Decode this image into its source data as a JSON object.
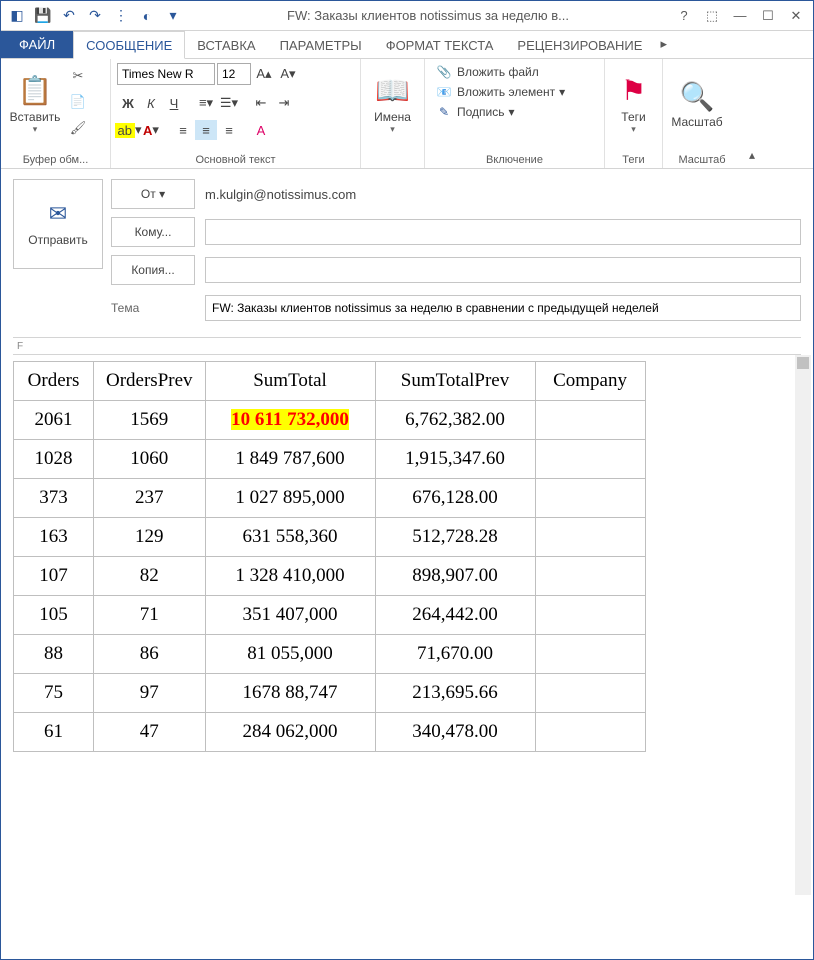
{
  "window": {
    "title": "FW: Заказы клиентов notissimus за неделю в...",
    "qat": {
      "save": "💾",
      "undo": "↶",
      "redo": "↷",
      "down": "▾",
      "sep": "↑↓"
    }
  },
  "tabs": {
    "file": "ФАЙЛ",
    "message": "СООБЩЕНИЕ",
    "insert": "ВСТАВКА",
    "options": "ПАРАМЕТРЫ",
    "format": "ФОРМАТ ТЕКСТА",
    "review": "РЕЦЕНЗИРОВАНИЕ"
  },
  "ribbon": {
    "clipboard": {
      "label": "Буфер обм...",
      "paste": "Вставить"
    },
    "font": {
      "label": "Основной текст",
      "name": "Times New R",
      "size": "12",
      "bold": "Ж",
      "italic": "К",
      "underline": "Ч",
      "hl": "ab",
      "fc": "A"
    },
    "names": {
      "label": "Имена",
      "btn": "Имена"
    },
    "include": {
      "label": "Включение",
      "attach_file": "Вложить файл",
      "attach_item": "Вложить элемент",
      "signature": "Подпись"
    },
    "tags": {
      "label": "Теги",
      "btn": "Теги"
    },
    "zoom": {
      "label": "Масштаб",
      "btn": "Масштаб"
    }
  },
  "compose": {
    "send": "Отправить",
    "from_btn": "От ▾",
    "from_val": "m.kulgin@notissimus.com",
    "to_btn": "Кому...",
    "cc_btn": "Копия...",
    "subject_lbl": "Тема",
    "subject_val": "FW: Заказы клиентов notissimus за неделю в сравнении с предыдущей неделей"
  },
  "table": {
    "headers": [
      "Orders",
      "OrdersPrev",
      "SumTotal",
      "SumTotalPrev",
      "Company"
    ],
    "rows": [
      {
        "c": [
          "2061",
          "1569",
          "10 611 732,000",
          "6,762,382.00",
          ""
        ],
        "hl": 2
      },
      {
        "c": [
          "1028",
          "1060",
          "1 849 787,600",
          "1,915,347.60",
          ""
        ]
      },
      {
        "c": [
          "373",
          "237",
          "1 027 895,000",
          "676,128.00",
          ""
        ]
      },
      {
        "c": [
          "163",
          "129",
          "631 558,360",
          "512,728.28",
          ""
        ]
      },
      {
        "c": [
          "107",
          "82",
          "1 328 410,000",
          "898,907.00",
          ""
        ]
      },
      {
        "c": [
          "105",
          "71",
          "351 407,000",
          "264,442.00",
          ""
        ]
      },
      {
        "c": [
          "88",
          "86",
          "81 055,000",
          "71,670.00",
          ""
        ]
      },
      {
        "c": [
          "75",
          "97",
          "1678 88,747",
          "213,695.66",
          ""
        ]
      },
      {
        "c": [
          "61",
          "47",
          "284 062,000",
          "340,478.00",
          ""
        ]
      }
    ],
    "col_widths": [
      "80px",
      "110px",
      "170px",
      "160px",
      "110px"
    ]
  }
}
